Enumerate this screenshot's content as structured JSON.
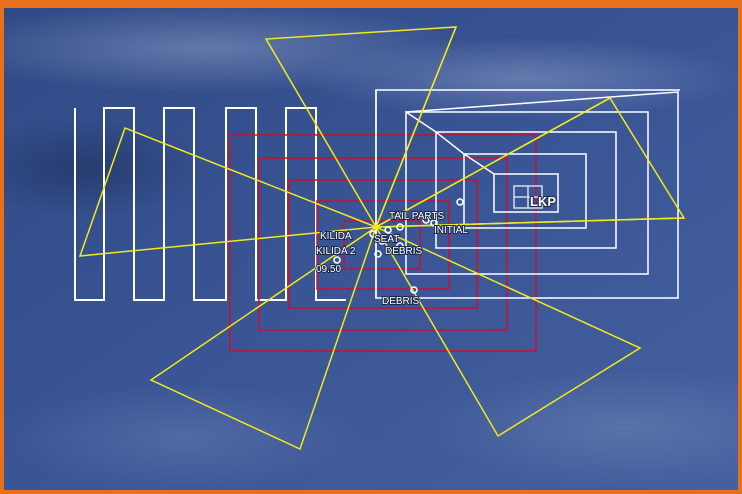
{
  "map": {
    "colors": {
      "frame": "#e8701a",
      "water": "#34508e",
      "expanding_square": "#ffffff",
      "red_square": "#c8102e",
      "sector_search": "#f0ea1a",
      "markers": "#ffffff"
    },
    "labels": {
      "tail_parts": "TAIL PARTS",
      "initial": "INITIAL",
      "kilida": "KILIDA",
      "seat": "SEAT",
      "kilida2": "KILIDA 2",
      "debris1": "DEBRIS",
      "time": "09.50",
      "debris2": "DEBRIS",
      "lkp": "LKP"
    }
  }
}
